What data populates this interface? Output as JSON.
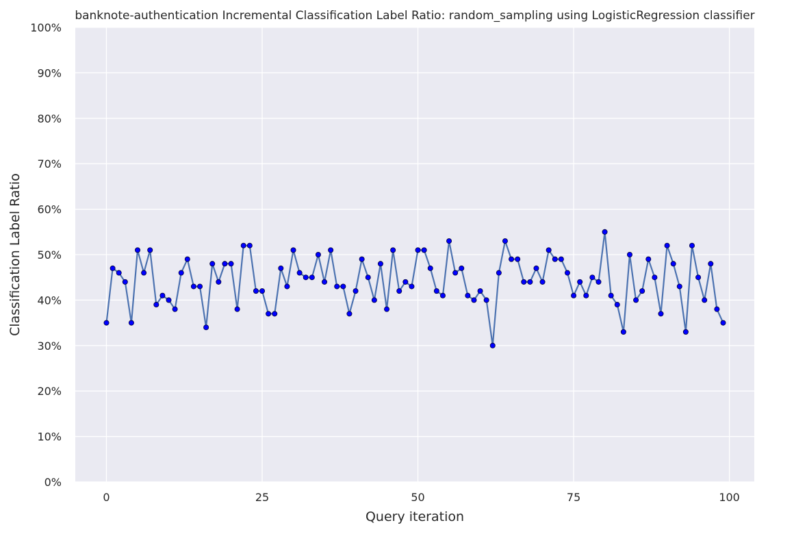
{
  "chart_data": {
    "type": "line",
    "title": "banknote-authentication Incremental Classification Label Ratio: random_sampling using LogisticRegression classifier",
    "xlabel": "Query iteration",
    "ylabel": "Classification Label Ratio",
    "xlim": [
      -5,
      104
    ],
    "ylim": [
      0,
      1
    ],
    "x_ticks": [
      0,
      25,
      50,
      75,
      100
    ],
    "x_tick_labels": [
      "0",
      "25",
      "50",
      "75",
      "100"
    ],
    "y_ticks": [
      0,
      0.1,
      0.2,
      0.3,
      0.4,
      0.5,
      0.6,
      0.7,
      0.8,
      0.9,
      1.0
    ],
    "y_tick_labels": [
      "0%",
      "10%",
      "20%",
      "30%",
      "40%",
      "50%",
      "60%",
      "70%",
      "80%",
      "90%",
      "100%"
    ],
    "grid": true,
    "background_color": "#EAEAF2",
    "grid_color": "#FFFFFF",
    "series": [
      {
        "line_color": "#4C72B0",
        "marker_color": "#0000FF",
        "x": [
          0,
          1,
          2,
          3,
          4,
          5,
          6,
          7,
          8,
          9,
          10,
          11,
          12,
          13,
          14,
          15,
          16,
          17,
          18,
          19,
          20,
          21,
          22,
          23,
          24,
          25,
          26,
          27,
          28,
          29,
          30,
          31,
          32,
          33,
          34,
          35,
          36,
          37,
          38,
          39,
          40,
          41,
          42,
          43,
          44,
          45,
          46,
          47,
          48,
          49,
          50,
          51,
          52,
          53,
          54,
          55,
          56,
          57,
          58,
          59,
          60,
          61,
          62,
          63,
          64,
          65,
          66,
          67,
          68,
          69,
          70,
          71,
          72,
          73,
          74,
          75,
          76,
          77,
          78,
          79,
          80,
          81,
          82,
          83,
          84,
          85,
          86,
          87,
          88,
          89,
          90,
          91,
          92,
          93,
          94,
          95,
          96,
          97,
          98,
          99
        ],
        "values": [
          0.35,
          0.47,
          0.46,
          0.44,
          0.35,
          0.51,
          0.46,
          0.51,
          0.39,
          0.41,
          0.4,
          0.38,
          0.46,
          0.49,
          0.43,
          0.43,
          0.34,
          0.48,
          0.44,
          0.48,
          0.48,
          0.38,
          0.52,
          0.52,
          0.42,
          0.42,
          0.37,
          0.37,
          0.47,
          0.43,
          0.51,
          0.46,
          0.45,
          0.45,
          0.5,
          0.44,
          0.51,
          0.43,
          0.43,
          0.37,
          0.42,
          0.49,
          0.45,
          0.4,
          0.48,
          0.38,
          0.51,
          0.42,
          0.44,
          0.43,
          0.51,
          0.51,
          0.47,
          0.42,
          0.41,
          0.53,
          0.46,
          0.47,
          0.41,
          0.4,
          0.42,
          0.4,
          0.3,
          0.46,
          0.53,
          0.49,
          0.49,
          0.44,
          0.44,
          0.47,
          0.44,
          0.51,
          0.49,
          0.49,
          0.46,
          0.41,
          0.44,
          0.41,
          0.45,
          0.44,
          0.55,
          0.41,
          0.39,
          0.33,
          0.5,
          0.4,
          0.42,
          0.49,
          0.45,
          0.37,
          0.52,
          0.48,
          0.43,
          0.33,
          0.52,
          0.45,
          0.4,
          0.48,
          0.38,
          0.35
        ]
      }
    ]
  }
}
